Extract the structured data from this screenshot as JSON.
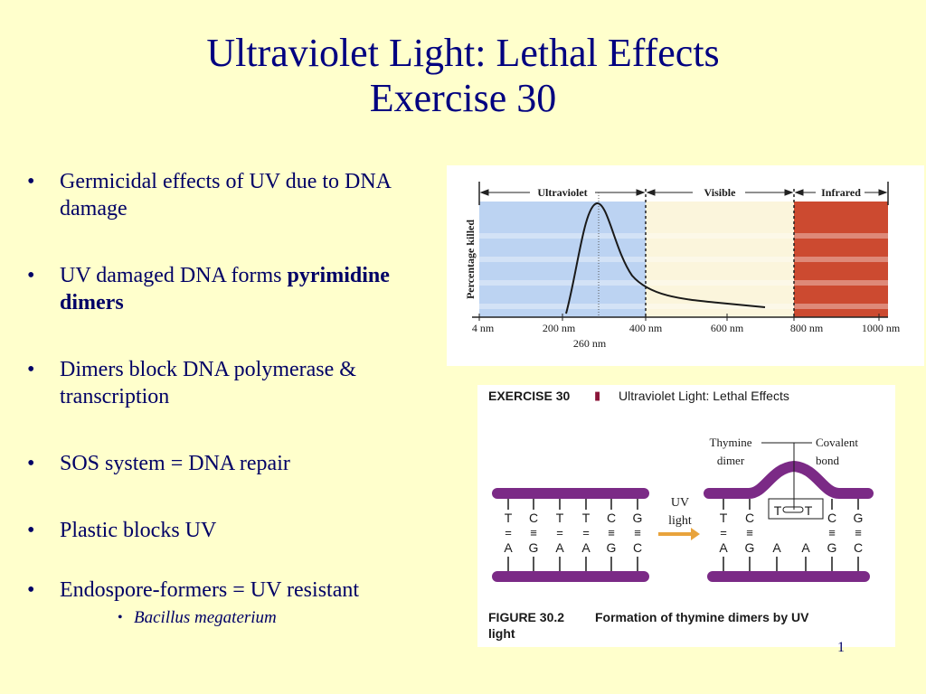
{
  "title": {
    "line1": "Ultraviolet Light:  Lethal Effects",
    "line2": "Exercise 30"
  },
  "bullets": [
    {
      "text": "Germicidal effects of UV due to DNA damage"
    },
    {
      "text": "UV damaged DNA forms ",
      "bold": "pyrimidine dimers"
    },
    {
      "text": "Dimers block DNA polymerase & transcription"
    },
    {
      "text": "SOS system = DNA repair"
    },
    {
      "text": "Plastic blocks UV"
    },
    {
      "text": "Endospore-formers = UV resistant"
    }
  ],
  "sub_bullet": "Bacillus megaterium",
  "bullet_char": "•",
  "spectrum_chart": {
    "ylabel": "Percentage killed",
    "regions": [
      "Ultraviolet",
      "Visible",
      "Infrared"
    ],
    "region_colors": [
      "#bcd3f2",
      "#fbf5dc",
      "#cc4a30"
    ],
    "x_ticks": [
      "4 nm",
      "200 nm",
      "400 nm",
      "600 nm",
      "800 nm",
      "1000 nm"
    ],
    "peak_label": "260 nm"
  },
  "figure": {
    "header_bold": "EXERCISE 30",
    "header_sep": "▮",
    "header_text": "Ultraviolet Light: Lethal Effects",
    "thymine_dimer_line1": "Thymine",
    "thymine_dimer_line2": "dimer",
    "covalent_bond_line1": "Covalent",
    "covalent_bond_line2": "bond",
    "uv_light_line1": "UV",
    "uv_light_line2": "light",
    "left_strand_top": [
      "T",
      "C",
      "T",
      "T",
      "C",
      "G"
    ],
    "left_bonds": [
      "=",
      "≡",
      "=",
      "=",
      "≡",
      "≡"
    ],
    "left_strand_bottom": [
      "A",
      "G",
      "A",
      "A",
      "G",
      "C"
    ],
    "right_strand_top": [
      "T",
      "C",
      "T",
      "T",
      "C",
      "G"
    ],
    "right_bonds": [
      "=",
      "≡",
      "",
      "",
      "≡",
      "≡"
    ],
    "right_strand_bottom": [
      "A",
      "G",
      "A",
      "A",
      "G",
      "C"
    ],
    "caption_bold": "FIGURE 30.2",
    "caption_text_line1": "Formation of thymine dimers by UV",
    "caption_text_line2": "light",
    "strand_color": "#7b2a86"
  },
  "page_number": "1"
}
